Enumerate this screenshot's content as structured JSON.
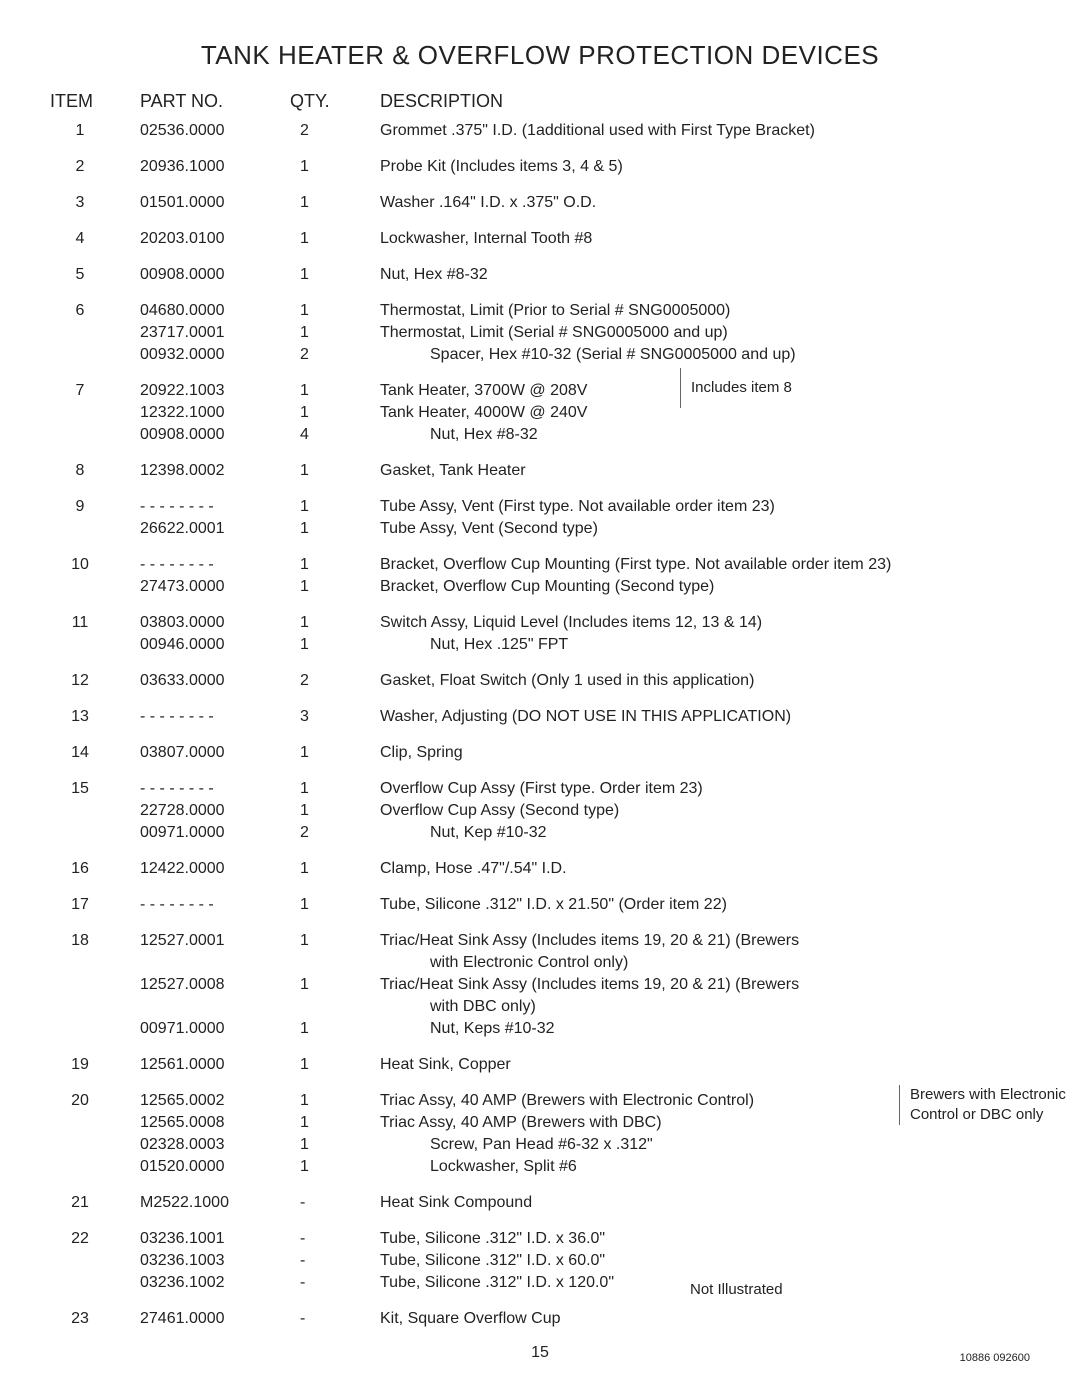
{
  "title": "TANK HEATER & OVERFLOW PROTECTION DEVICES",
  "headers": {
    "item": "ITEM",
    "part": "PART NO.",
    "qty": "QTY.",
    "desc": "DESCRIPTION"
  },
  "side_notes": {
    "includes8": "Includes item 8",
    "brewers": "Brewers with Electronic Control or DBC only",
    "notillus": "Not Illustrated"
  },
  "page_number": "15",
  "doc_number": "10886 092600",
  "rows": [
    {
      "item": "1",
      "lines": [
        {
          "part": "02536.0000",
          "qty": "2",
          "desc": "Grommet  .375\" I.D. (1additional used with First Type Bracket)"
        }
      ]
    },
    {
      "item": "2",
      "lines": [
        {
          "part": "20936.1000",
          "qty": "1",
          "desc": "Probe Kit (Includes items 3, 4 & 5)"
        }
      ]
    },
    {
      "item": "3",
      "lines": [
        {
          "part": "01501.0000",
          "qty": "1",
          "desc": "Washer  .164\" I.D. x .375\" O.D."
        }
      ]
    },
    {
      "item": "4",
      "lines": [
        {
          "part": "20203.0100",
          "qty": "1",
          "desc": "Lockwasher, Internal Tooth #8"
        }
      ]
    },
    {
      "item": "5",
      "lines": [
        {
          "part": "00908.0000",
          "qty": "1",
          "desc": "Nut, Hex #8-32"
        }
      ]
    },
    {
      "item": "6",
      "lines": [
        {
          "part": "04680.0000",
          "qty": "1",
          "desc": "Thermostat, Limit (Prior to Serial # SNG0005000)"
        },
        {
          "part": "23717.0001",
          "qty": "1",
          "desc": "Thermostat, Limit (Serial # SNG0005000 and up)"
        },
        {
          "part": "00932.0000",
          "qty": "2",
          "desc": "Spacer, Hex #10-32 (Serial # SNG0005000 and up)",
          "indent": true
        }
      ]
    },
    {
      "item": "7",
      "lines": [
        {
          "part": "20922.1003",
          "qty": "1",
          "desc": "Tank Heater, 3700W @ 208V"
        },
        {
          "part": "12322.1000",
          "qty": "1",
          "desc": "Tank Heater, 4000W @ 240V"
        },
        {
          "part": "00908.0000",
          "qty": "4",
          "desc": "Nut, Hex #8-32",
          "indent": true
        }
      ]
    },
    {
      "item": "8",
      "lines": [
        {
          "part": "12398.0002",
          "qty": "1",
          "desc": "Gasket, Tank Heater"
        }
      ]
    },
    {
      "item": "9",
      "lines": [
        {
          "part": "- - - - - - - -",
          "qty": "1",
          "desc": "Tube Assy, Vent (First type. Not available order item 23)"
        },
        {
          "part": "26622.0001",
          "qty": "1",
          "desc": "Tube Assy, Vent (Second type)"
        }
      ]
    },
    {
      "item": "10",
      "lines": [
        {
          "part": "- - - - - - - -",
          "qty": "1",
          "desc": "Bracket, Overflow Cup Mounting (First type. Not available order item 23)"
        },
        {
          "part": "27473.0000",
          "qty": "1",
          "desc": "Bracket, Overflow Cup Mounting (Second type)"
        }
      ]
    },
    {
      "item": "11",
      "lines": [
        {
          "part": "03803.0000",
          "qty": "1",
          "desc": "Switch Assy, Liquid Level (Includes items 12, 13 & 14)"
        },
        {
          "part": "00946.0000",
          "qty": "1",
          "desc": "Nut, Hex .125\" FPT",
          "indent": true
        }
      ]
    },
    {
      "item": "12",
      "lines": [
        {
          "part": "03633.0000",
          "qty": "2",
          "desc": "Gasket, Float Switch (Only 1 used in this application)"
        }
      ]
    },
    {
      "item": "13",
      "lines": [
        {
          "part": "- - - - - - - -",
          "qty": "3",
          "desc": "Washer, Adjusting (DO NOT USE IN THIS APPLICATION)"
        }
      ]
    },
    {
      "item": "14",
      "lines": [
        {
          "part": "03807.0000",
          "qty": "1",
          "desc": "Clip, Spring"
        }
      ]
    },
    {
      "item": "15",
      "lines": [
        {
          "part": "- - - - - - - -",
          "qty": "1",
          "desc": "Overflow Cup Assy (First type. Order item 23)"
        },
        {
          "part": "22728.0000",
          "qty": "1",
          "desc": "Overflow Cup Assy (Second type)"
        },
        {
          "part": "00971.0000",
          "qty": "2",
          "desc": "Nut, Kep #10-32",
          "indent": true
        }
      ]
    },
    {
      "item": "16",
      "lines": [
        {
          "part": "12422.0000",
          "qty": "1",
          "desc": "Clamp, Hose .47\"/.54\" I.D."
        }
      ]
    },
    {
      "item": "17",
      "lines": [
        {
          "part": "- - - - - - - -",
          "qty": "1",
          "desc": "Tube, Silicone .312\" I.D. x 21.50\" (Order item 22)"
        }
      ]
    },
    {
      "item": "18",
      "lines": [
        {
          "part": "12527.0001",
          "qty": "1",
          "desc": "Triac/Heat Sink Assy (Includes items 19, 20 & 21) (Brewers"
        },
        {
          "part": "",
          "qty": "",
          "desc": "with Electronic Control only)",
          "indent": true
        },
        {
          "part": "12527.0008",
          "qty": "1",
          "desc": "Triac/Heat Sink Assy (Includes items 19, 20 & 21) (Brewers"
        },
        {
          "part": "",
          "qty": "",
          "desc": "with DBC only)",
          "indent": true
        },
        {
          "part": "00971.0000",
          "qty": "1",
          "desc": "Nut, Keps #10-32",
          "indent": true
        }
      ]
    },
    {
      "item": "19",
      "lines": [
        {
          "part": "12561.0000",
          "qty": "1",
          "desc": "Heat Sink, Copper"
        }
      ]
    },
    {
      "item": "20",
      "lines": [
        {
          "part": "12565.0002",
          "qty": "1",
          "desc": "Triac Assy, 40 AMP (Brewers with Electronic Control)"
        },
        {
          "part": "12565.0008",
          "qty": "1",
          "desc": "Triac Assy, 40 AMP (Brewers with DBC)"
        },
        {
          "part": "02328.0003",
          "qty": "1",
          "desc": "Screw, Pan Head #6-32 x .312\"",
          "indent": true
        },
        {
          "part": "01520.0000",
          "qty": "1",
          "desc": "Lockwasher, Split #6",
          "indent": true
        }
      ]
    },
    {
      "item": "21",
      "lines": [
        {
          "part": "M2522.1000",
          "qty": "-",
          "desc": "Heat Sink Compound"
        }
      ]
    },
    {
      "item": "22",
      "lines": [
        {
          "part": "03236.1001",
          "qty": "-",
          "desc": "Tube, Silicone .312\" I.D. x 36.0\""
        },
        {
          "part": "03236.1003",
          "qty": "-",
          "desc": "Tube, Silicone .312\" I.D. x 60.0\""
        },
        {
          "part": "03236.1002",
          "qty": "-",
          "desc": "Tube, Silicone .312\" I.D. x 120.0\""
        }
      ]
    },
    {
      "item": "23",
      "lines": [
        {
          "part": "27461.0000",
          "qty": "-",
          "desc": "Kit, Square Overflow Cup"
        }
      ]
    }
  ]
}
